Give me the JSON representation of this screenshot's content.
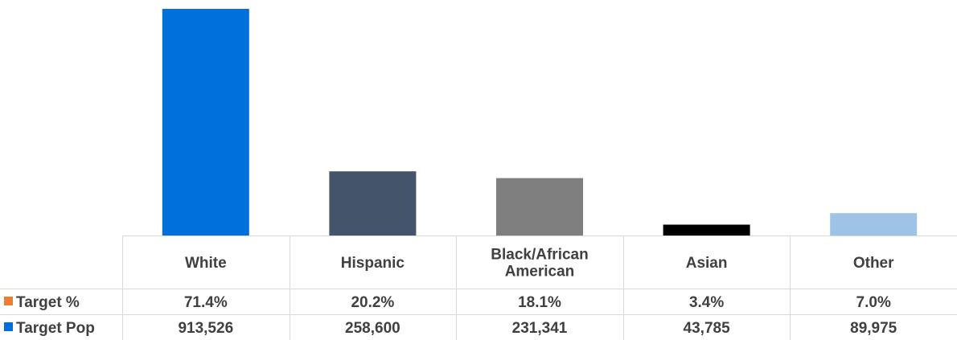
{
  "chart_data": {
    "type": "bar",
    "stacked": true,
    "categories": [
      "White",
      "Hispanic",
      "Black/African American",
      "Asian",
      "Other"
    ],
    "category_lines": [
      [
        "White"
      ],
      [
        "Hispanic"
      ],
      [
        "Black/African",
        "American"
      ],
      [
        "Asian"
      ],
      [
        "Other"
      ]
    ],
    "series": [
      {
        "name": "Target Pop",
        "values": [
          913526,
          258600,
          231341,
          43785,
          89975
        ],
        "display": [
          "913,526",
          "258,600",
          "231,341",
          "43,785",
          "89,975"
        ],
        "color": "#0070DD"
      },
      {
        "name": "Target %",
        "values": [
          71.4,
          20.2,
          18.1,
          3.4,
          7.0
        ],
        "display": [
          "71.4%",
          "20.2%",
          "18.1%",
          "3.4%",
          "7.0%"
        ],
        "color": "#ED7D31"
      }
    ],
    "bar_colors": [
      "#0070DD",
      "#44546A",
      "#7F7F7F",
      "#000000",
      "#9DC3E6"
    ],
    "data_table": true,
    "legend": "data-table-keys",
    "grid": false
  }
}
